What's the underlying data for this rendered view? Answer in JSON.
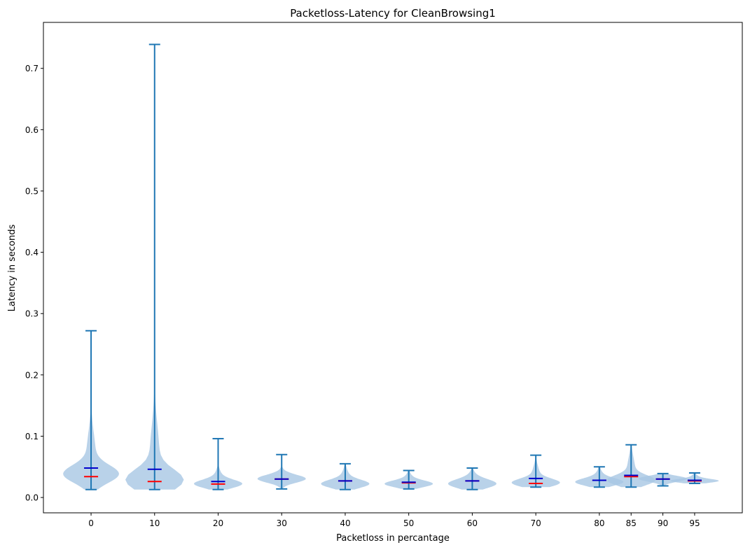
{
  "chart_data": {
    "type": "violin",
    "title": "Packetloss-Latency for CleanBrowsing1",
    "xlabel": "Packetloss in percantage",
    "ylabel": "Latency in seconds",
    "xlim": [
      -7.5,
      102.5
    ],
    "ylim": [
      -0.025,
      0.775
    ],
    "yticks": [
      0.0,
      0.1,
      0.2,
      0.3,
      0.4,
      0.5,
      0.6,
      0.7
    ],
    "ytick_labels": [
      "0.0",
      "0.1",
      "0.2",
      "0.3",
      "0.4",
      "0.5",
      "0.6",
      "0.7"
    ],
    "xticks": [
      0,
      10,
      20,
      30,
      40,
      50,
      60,
      70,
      80,
      85,
      90,
      95
    ],
    "xtick_labels": [
      "0",
      "10",
      "20",
      "30",
      "40",
      "50",
      "60",
      "70",
      "80",
      "85",
      "90",
      "95"
    ],
    "grid": false,
    "colors": {
      "body": "#a7c7e3",
      "whisker": "#1f77b4",
      "median": "#ff0000",
      "mean": "#0000cc"
    },
    "violins": [
      {
        "x": 0,
        "min": 0.013,
        "max": 0.272,
        "median": 0.034,
        "mean": 0.048,
        "bulk_low": 0.014,
        "bulk_high": 0.06,
        "bulk_peak": 0.038,
        "tail_top": 0.13,
        "max_halfwidth": 4.4
      },
      {
        "x": 10,
        "min": 0.013,
        "max": 0.739,
        "median": 0.026,
        "mean": 0.046,
        "bulk_low": 0.014,
        "bulk_high": 0.07,
        "bulk_peak": 0.028,
        "tail_top": 0.15,
        "max_halfwidth": 4.6
      },
      {
        "x": 20,
        "min": 0.013,
        "max": 0.096,
        "median": 0.022,
        "mean": 0.026,
        "bulk_low": 0.014,
        "bulk_high": 0.035,
        "bulk_peak": 0.022,
        "tail_top": 0.05,
        "max_halfwidth": 3.8
      },
      {
        "x": 30,
        "min": 0.014,
        "max": 0.07,
        "median": 0.03,
        "mean": 0.03,
        "bulk_low": 0.02,
        "bulk_high": 0.04,
        "bulk_peak": 0.03,
        "tail_top": 0.048,
        "max_halfwidth": 3.8
      },
      {
        "x": 40,
        "min": 0.013,
        "max": 0.055,
        "median": 0.027,
        "mean": 0.027,
        "bulk_low": 0.015,
        "bulk_high": 0.036,
        "bulk_peak": 0.022,
        "tail_top": 0.052,
        "max_halfwidth": 3.8
      },
      {
        "x": 50,
        "min": 0.014,
        "max": 0.044,
        "median": 0.024,
        "mean": 0.025,
        "bulk_low": 0.015,
        "bulk_high": 0.032,
        "bulk_peak": 0.022,
        "tail_top": 0.043,
        "max_halfwidth": 3.8
      },
      {
        "x": 60,
        "min": 0.013,
        "max": 0.048,
        "median": 0.027,
        "mean": 0.027,
        "bulk_low": 0.015,
        "bulk_high": 0.038,
        "bulk_peak": 0.022,
        "tail_top": 0.047,
        "max_halfwidth": 3.8
      },
      {
        "x": 70,
        "min": 0.017,
        "max": 0.069,
        "median": 0.023,
        "mean": 0.031,
        "bulk_low": 0.019,
        "bulk_high": 0.04,
        "bulk_peak": 0.024,
        "tail_top": 0.06,
        "max_halfwidth": 3.8
      },
      {
        "x": 80,
        "min": 0.017,
        "max": 0.05,
        "median": 0.028,
        "mean": 0.028,
        "bulk_low": 0.019,
        "bulk_high": 0.038,
        "bulk_peak": 0.025,
        "tail_top": 0.049,
        "max_halfwidth": 3.8
      },
      {
        "x": 85,
        "min": 0.017,
        "max": 0.086,
        "median": 0.034,
        "mean": 0.036,
        "bulk_low": 0.019,
        "bulk_high": 0.045,
        "bulk_peak": 0.028,
        "tail_top": 0.08,
        "max_halfwidth": 3.8
      },
      {
        "x": 90,
        "min": 0.019,
        "max": 0.039,
        "median": 0.03,
        "mean": 0.03,
        "bulk_low": 0.021,
        "bulk_high": 0.036,
        "bulk_peak": 0.03,
        "tail_top": 0.039,
        "max_halfwidth": 3.8
      },
      {
        "x": 95,
        "min": 0.023,
        "max": 0.04,
        "median": 0.027,
        "mean": 0.028,
        "bulk_low": 0.024,
        "bulk_high": 0.034,
        "bulk_peak": 0.027,
        "tail_top": 0.04,
        "max_halfwidth": 3.8
      }
    ]
  }
}
